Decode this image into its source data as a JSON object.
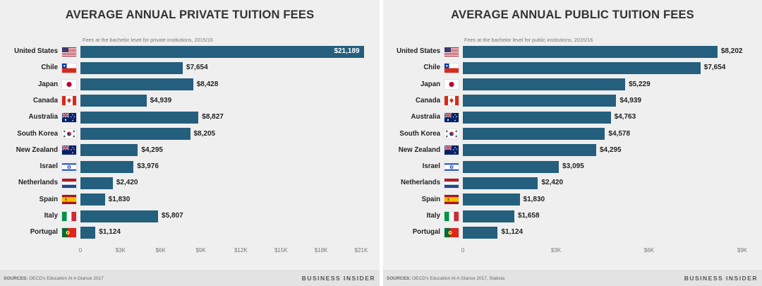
{
  "chart_data": [
    {
      "type": "bar",
      "orientation": "horizontal",
      "title": "AVERAGE ANNUAL PRIVATE TUITION FEES",
      "subtitle": "Fees at the bachelor level for private institutions, 2015/16",
      "categories": [
        "United States",
        "Chile",
        "Japan",
        "Canada",
        "Australia",
        "South Korea",
        "New Zealand",
        "Israel",
        "Netherlands",
        "Spain",
        "Italy",
        "Portugal"
      ],
      "values": [
        21189,
        7654,
        8428,
        4939,
        8827,
        8205,
        4295,
        3976,
        2420,
        1830,
        5807,
        1124
      ],
      "value_labels": [
        "$21,189",
        "$7,654",
        "$8,428",
        "$4,939",
        "$8,827",
        "$8,205",
        "$4,295",
        "$3,976",
        "$2,420",
        "$1,830",
        "$5,807",
        "$1,124"
      ],
      "xlim": [
        0,
        21000
      ],
      "x_ticks": [
        0,
        3000,
        6000,
        9000,
        12000,
        15000,
        18000,
        21000
      ],
      "x_tick_labels": [
        "0",
        "$3K",
        "$6K",
        "$9K",
        "$12K",
        "$15K",
        "$18K",
        "$21K"
      ],
      "grid": false,
      "source_label": "SOURCES:",
      "source_text": "OECD's Education At A Glance 2017",
      "brand": "BUSINESS INSIDER"
    },
    {
      "type": "bar",
      "orientation": "horizontal",
      "title": "AVERAGE ANNUAL PUBLIC TUITION FEES",
      "subtitle": "Fees at the bachelor level for public institutions, 2015/16",
      "categories": [
        "United States",
        "Chile",
        "Japan",
        "Canada",
        "Australia",
        "South Korea",
        "New Zealand",
        "Israel",
        "Netherlands",
        "Spain",
        "Italy",
        "Portugal"
      ],
      "values": [
        8202,
        7654,
        5229,
        4939,
        4763,
        4578,
        4295,
        3095,
        2420,
        1830,
        1658,
        1124
      ],
      "value_labels": [
        "$8,202",
        "$7,654",
        "$5,229",
        "$4,939",
        "$4,763",
        "$4,578",
        "$4,295",
        "$3,095",
        "$2,420",
        "$1,830",
        "$1,658",
        "$1,124"
      ],
      "xlim": [
        0,
        9000
      ],
      "x_ticks": [
        0,
        3000,
        6000,
        9000
      ],
      "x_tick_labels": [
        "0",
        "$3K",
        "$6K",
        "$9K"
      ],
      "grid": false,
      "source_label": "SOURCES:",
      "source_text": "OECD's Education At A Glance 2017, Statista",
      "brand": "BUSINESS INSIDER"
    }
  ],
  "flag_icons": [
    "us-flag-icon",
    "chile-flag-icon",
    "japan-flag-icon",
    "canada-flag-icon",
    "australia-flag-icon",
    "south-korea-flag-icon",
    "new-zealand-flag-icon",
    "israel-flag-icon",
    "netherlands-flag-icon",
    "spain-flag-icon",
    "italy-flag-icon",
    "portugal-flag-icon"
  ],
  "colors": {
    "bar": "#245f7d",
    "value_text": "#222222",
    "inside_value_text": "#ffffff"
  }
}
